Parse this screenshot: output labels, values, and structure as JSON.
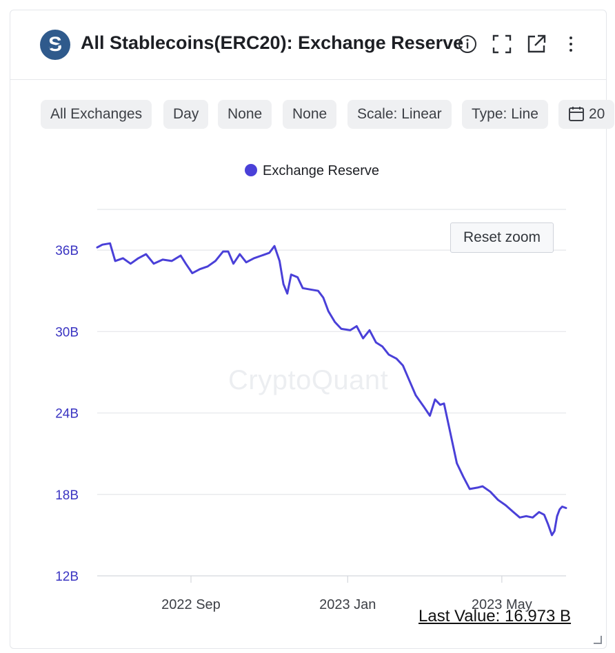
{
  "header": {
    "logo_letter": "S",
    "title": "All Stablecoins(ERC20): Exchange Reserve",
    "icons": [
      "info-icon",
      "fullscreen-icon",
      "external-link-icon",
      "more-vertical-icon"
    ]
  },
  "filters": {
    "chips": [
      "All Exchanges",
      "Day",
      "None",
      "None",
      "Scale: Linear",
      "Type: Line",
      "20"
    ],
    "calendar_icon": "calendar-icon"
  },
  "reset_zoom": "Reset zoom",
  "watermark": "CryptoQuant",
  "last_value": "Last Value: 16.973 B",
  "colors": {
    "series": "#4a40d8",
    "axis_label": "#3a34c2",
    "grid": "#e4e6ea"
  },
  "chart_data": {
    "type": "line",
    "title": "",
    "xlabel": "",
    "ylabel": "",
    "legend": "top-center",
    "grid": true,
    "ylim": [
      12,
      39
    ],
    "xlim": [
      "2022-06-20",
      "2023-06-20"
    ],
    "y_ticks": [
      12,
      18,
      24,
      30,
      36
    ],
    "y_tick_labels": [
      "12B",
      "18B",
      "24B",
      "30B",
      "36B"
    ],
    "x_ticks": [
      "2022-09-01",
      "2023-01-01",
      "2023-05-01"
    ],
    "x_tick_labels": [
      "2022 Sep",
      "2023 Jan",
      "2023 May"
    ],
    "series": [
      {
        "name": "Exchange Reserve",
        "unit": "B",
        "points": [
          [
            "2022-06-20",
            36.2
          ],
          [
            "2022-06-24",
            36.4
          ],
          [
            "2022-06-30",
            36.5
          ],
          [
            "2022-07-04",
            35.2
          ],
          [
            "2022-07-10",
            35.4
          ],
          [
            "2022-07-16",
            35.0
          ],
          [
            "2022-07-22",
            35.4
          ],
          [
            "2022-07-28",
            35.7
          ],
          [
            "2022-08-03",
            35.0
          ],
          [
            "2022-08-10",
            35.3
          ],
          [
            "2022-08-17",
            35.2
          ],
          [
            "2022-08-24",
            35.6
          ],
          [
            "2022-08-28",
            35.0
          ],
          [
            "2022-09-02",
            34.3
          ],
          [
            "2022-09-08",
            34.6
          ],
          [
            "2022-09-14",
            34.8
          ],
          [
            "2022-09-20",
            35.2
          ],
          [
            "2022-09-26",
            35.9
          ],
          [
            "2022-09-30",
            35.9
          ],
          [
            "2022-10-04",
            35.0
          ],
          [
            "2022-10-09",
            35.7
          ],
          [
            "2022-10-14",
            35.1
          ],
          [
            "2022-10-20",
            35.4
          ],
          [
            "2022-10-26",
            35.6
          ],
          [
            "2022-11-01",
            35.8
          ],
          [
            "2022-11-05",
            36.3
          ],
          [
            "2022-11-09",
            35.2
          ],
          [
            "2022-11-12",
            33.5
          ],
          [
            "2022-11-15",
            32.8
          ],
          [
            "2022-11-18",
            34.2
          ],
          [
            "2022-11-23",
            34.0
          ],
          [
            "2022-11-27",
            33.2
          ],
          [
            "2022-12-03",
            33.1
          ],
          [
            "2022-12-09",
            33.0
          ],
          [
            "2022-12-13",
            32.5
          ],
          [
            "2022-12-17",
            31.5
          ],
          [
            "2022-12-22",
            30.7
          ],
          [
            "2022-12-27",
            30.2
          ],
          [
            "2023-01-03",
            30.1
          ],
          [
            "2023-01-08",
            30.4
          ],
          [
            "2023-01-13",
            29.5
          ],
          [
            "2023-01-18",
            30.1
          ],
          [
            "2023-01-23",
            29.2
          ],
          [
            "2023-01-28",
            28.9
          ],
          [
            "2023-02-02",
            28.3
          ],
          [
            "2023-02-08",
            28.0
          ],
          [
            "2023-02-13",
            27.5
          ],
          [
            "2023-02-18",
            26.4
          ],
          [
            "2023-02-23",
            25.3
          ],
          [
            "2023-03-01",
            24.5
          ],
          [
            "2023-03-06",
            23.8
          ],
          [
            "2023-03-10",
            25.0
          ],
          [
            "2023-03-14",
            24.6
          ],
          [
            "2023-03-17",
            24.7
          ],
          [
            "2023-03-22",
            22.5
          ],
          [
            "2023-03-27",
            20.3
          ],
          [
            "2023-04-01",
            19.3
          ],
          [
            "2023-04-06",
            18.4
          ],
          [
            "2023-04-12",
            18.5
          ],
          [
            "2023-04-16",
            18.6
          ],
          [
            "2023-04-22",
            18.2
          ],
          [
            "2023-04-28",
            17.6
          ],
          [
            "2023-05-04",
            17.2
          ],
          [
            "2023-05-10",
            16.7
          ],
          [
            "2023-05-15",
            16.3
          ],
          [
            "2023-05-20",
            16.4
          ],
          [
            "2023-05-25",
            16.3
          ],
          [
            "2023-05-30",
            16.7
          ],
          [
            "2023-06-03",
            16.5
          ],
          [
            "2023-06-06",
            15.8
          ],
          [
            "2023-06-09",
            15.0
          ],
          [
            "2023-06-11",
            15.3
          ],
          [
            "2023-06-13",
            16.4
          ],
          [
            "2023-06-15",
            16.9
          ],
          [
            "2023-06-17",
            17.1
          ],
          [
            "2023-06-20",
            17.0
          ]
        ]
      }
    ]
  }
}
